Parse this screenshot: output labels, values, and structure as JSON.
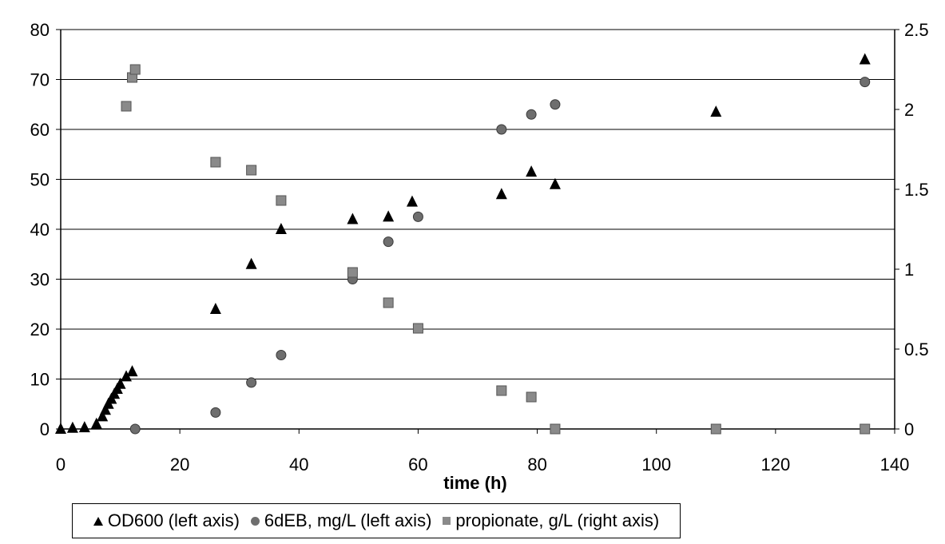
{
  "chart_data": {
    "type": "scatter",
    "title": "",
    "xlabel": "time (h)",
    "ylabel": "",
    "y2label": "",
    "xlim": [
      0,
      140
    ],
    "ylim": [
      0,
      80
    ],
    "y2lim": [
      0,
      2.5
    ],
    "x_ticks": [
      "0",
      "20",
      "40",
      "60",
      "80",
      "100",
      "120",
      "140"
    ],
    "y_ticks": [
      "0",
      "10",
      "20",
      "30",
      "40",
      "50",
      "60",
      "70",
      "80"
    ],
    "y2_ticks": [
      "0",
      "0.5",
      "1",
      "1.5",
      "2",
      "2.5"
    ],
    "grid": true,
    "legend_position": "bottom",
    "series": [
      {
        "name": "OD600 (left axis)",
        "axis": "left",
        "marker": "triangle",
        "color": "#000000",
        "x": [
          0,
          2,
          4,
          6,
          7,
          7.5,
          8,
          8.5,
          9,
          9.5,
          10,
          11,
          12,
          26,
          32,
          37,
          49,
          55,
          59,
          74,
          79,
          83,
          110,
          135
        ],
        "y": [
          0,
          0.2,
          0.3,
          1,
          2.5,
          3.8,
          5,
          6,
          7,
          8,
          9,
          10.5,
          11.5,
          24,
          33,
          40,
          42,
          42.5,
          45.5,
          47,
          51.5,
          49,
          63.5,
          74
        ]
      },
      {
        "name": "6dEB, mg/L (left axis)",
        "axis": "left",
        "marker": "circle",
        "color": "#6e6e6e",
        "x": [
          12.5,
          26,
          32,
          37,
          49,
          55,
          60,
          74,
          79,
          83,
          135
        ],
        "y": [
          0,
          3.3,
          9.3,
          14.8,
          30,
          37.5,
          42.5,
          60,
          63,
          65,
          69.5
        ]
      },
      {
        "name": "propionate, g/L (right axis)",
        "axis": "right",
        "marker": "square",
        "color": "#8a8a8a",
        "x": [
          11,
          12,
          12.5,
          26,
          32,
          37,
          49,
          55,
          60,
          74,
          79,
          83,
          110,
          135
        ],
        "y": [
          2.02,
          2.2,
          2.25,
          1.67,
          1.62,
          1.43,
          0.98,
          0.79,
          0.63,
          0.24,
          0.2,
          0,
          0,
          0
        ]
      }
    ]
  }
}
